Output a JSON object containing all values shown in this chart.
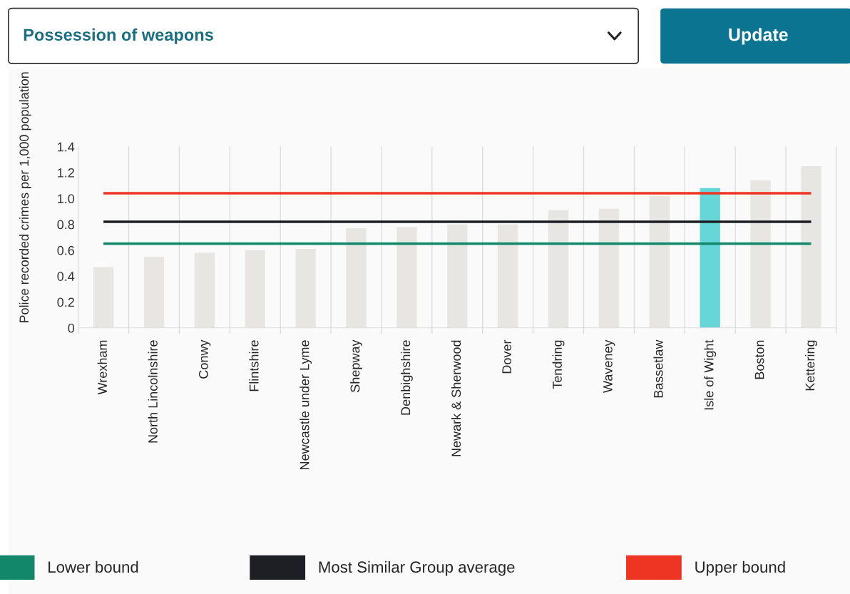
{
  "chart_data": {
    "type": "bar",
    "title": "Possession of weapons",
    "annotations": [
      "Update"
    ],
    "ylabel": "Police recorded crimes per 1,000 population",
    "categories": [
      "Wrexham",
      "North Lincolnshire",
      "Conwy",
      "Flintshire",
      "Newcastle under Lyme",
      "Shepway",
      "Denbighshire",
      "Newark & Sherwood",
      "Dover",
      "Tendring",
      "Waveney",
      "Bassetlaw",
      "Isle of Wight",
      "Boston",
      "Kettering"
    ],
    "values": [
      0.47,
      0.55,
      0.58,
      0.6,
      0.61,
      0.77,
      0.78,
      0.8,
      0.8,
      0.91,
      0.92,
      1.02,
      1.08,
      1.14,
      1.25
    ],
    "colors": [
      "#e8e6e2",
      "#e8e6e2",
      "#e8e6e2",
      "#e8e6e2",
      "#e8e6e2",
      "#e8e6e2",
      "#e8e6e2",
      "#e8e6e2",
      "#e8e6e2",
      "#e8e6e2",
      "#e8e6e2",
      "#e8e6e2",
      "#67d6d8",
      "#e8e6e2",
      "#e8e6e2"
    ],
    "ylim": [
      0,
      1.4
    ],
    "yticks": [
      0,
      0.2,
      0.4,
      0.6,
      0.8,
      {
        "value": 1.0,
        "label": "1.0"
      },
      1.2,
      1.4
    ],
    "ref_lines": [
      {
        "axis": "y",
        "value": 0.65,
        "label": "Lower bound",
        "color": "#12876a"
      },
      {
        "axis": "y",
        "value": 0.82,
        "label": "Most Similar Group average",
        "color": "#1e1f24"
      },
      {
        "axis": "y",
        "value": 1.04,
        "label": "Upper bound",
        "color": "#ee3524"
      }
    ],
    "grid": "x",
    "legend": "bottom"
  }
}
